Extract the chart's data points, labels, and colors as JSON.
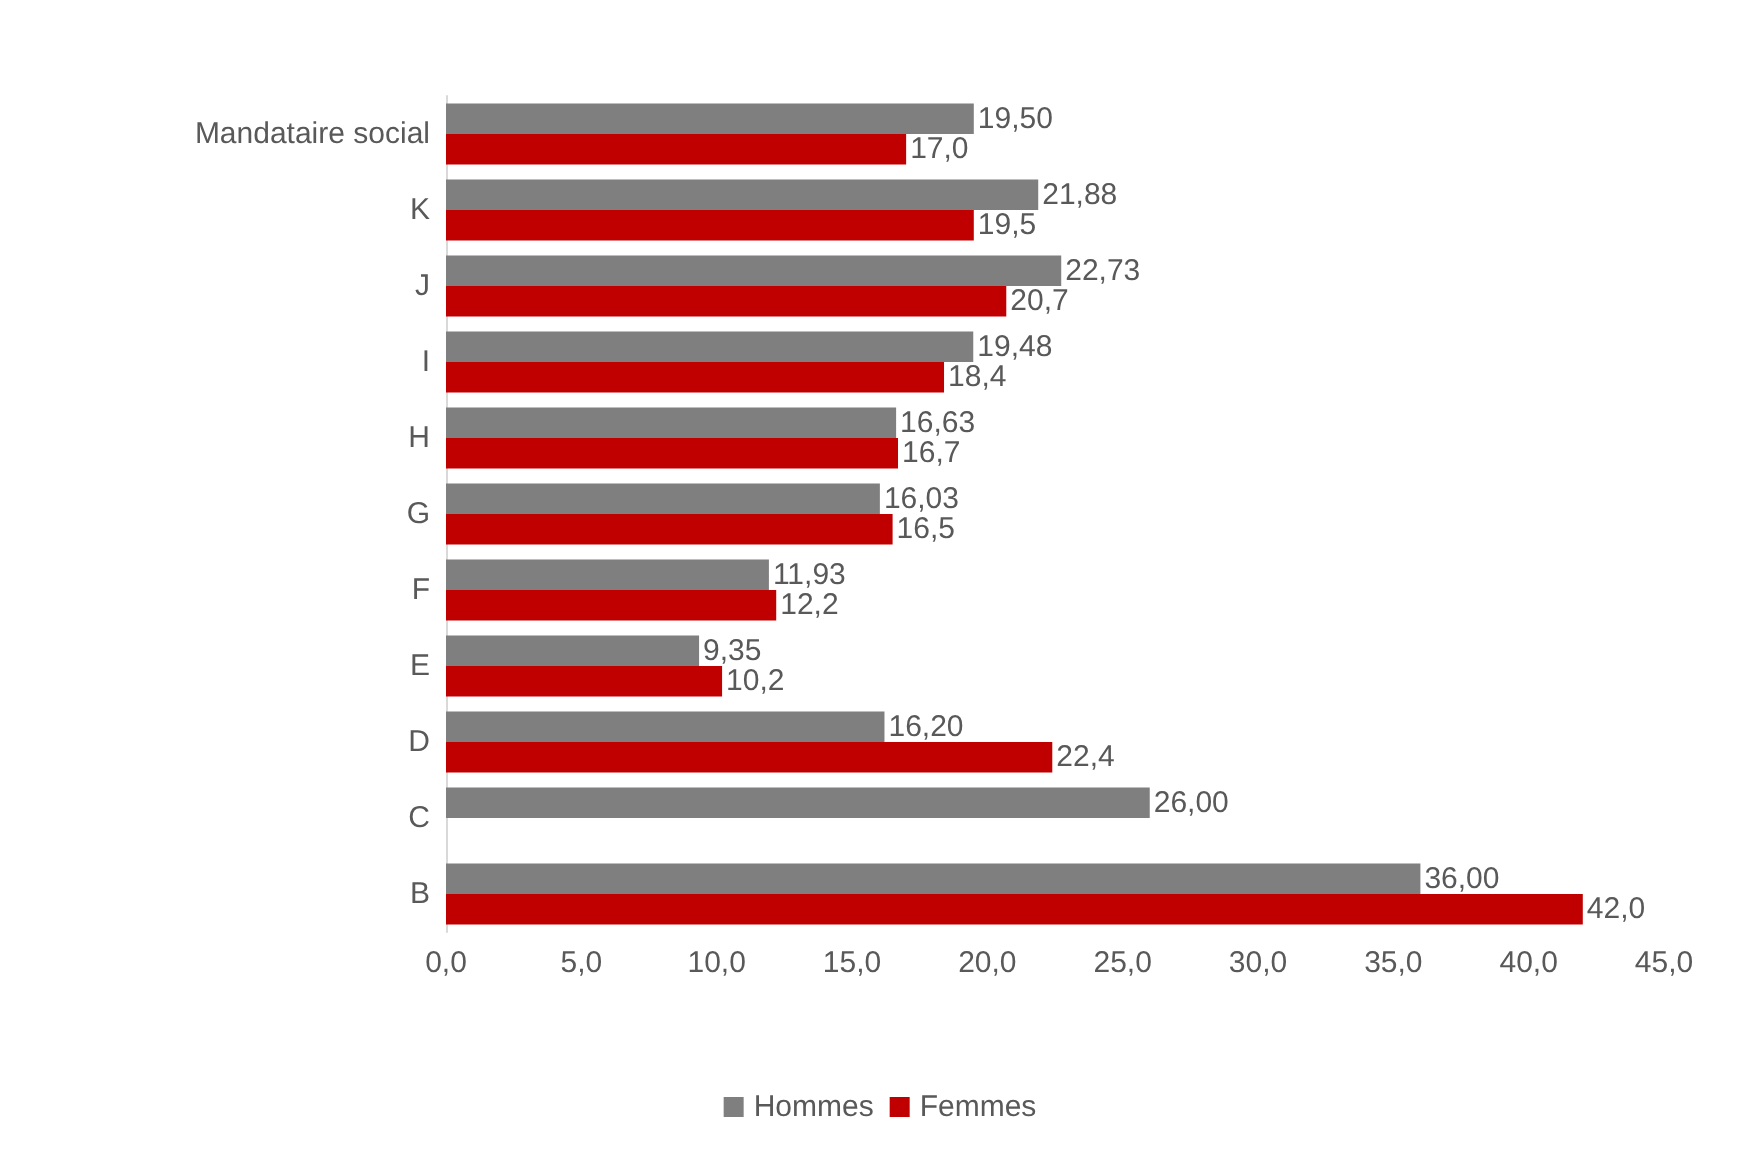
{
  "chart_data": {
    "type": "bar",
    "orientation": "horizontal",
    "categories": [
      "Mandataire social",
      "K",
      "J",
      "I",
      "H",
      "G",
      "F",
      "E",
      "D",
      "C",
      "B"
    ],
    "series": [
      {
        "name": "Hommes",
        "color": "#7f7f7f",
        "values": [
          19.5,
          21.88,
          22.73,
          19.48,
          16.63,
          16.03,
          11.93,
          9.35,
          16.2,
          26.0,
          36.0
        ],
        "value_labels": [
          "19,50",
          "21,88",
          "22,73",
          "19,48",
          "16,63",
          "16,03",
          "11,93",
          "9,35",
          "16,20",
          "26,00",
          "36,00"
        ]
      },
      {
        "name": "Femmes",
        "color": "#c00000",
        "values": [
          17.0,
          19.5,
          20.7,
          18.4,
          16.7,
          16.5,
          12.2,
          10.2,
          22.4,
          null,
          42.0
        ],
        "value_labels": [
          "17,0",
          "19,5",
          "20,7",
          "18,4",
          "16,7",
          "16,5",
          "12,2",
          "10,2",
          "22,4",
          null,
          "42,0"
        ]
      }
    ],
    "xlim": [
      0,
      45
    ],
    "xticks": [
      {
        "value": 0,
        "label": "0,0"
      },
      {
        "value": 5,
        "label": "5,0"
      },
      {
        "value": 10,
        "label": "10,0"
      },
      {
        "value": 15,
        "label": "15,0"
      },
      {
        "value": 20,
        "label": "20,0"
      },
      {
        "value": 25,
        "label": "25,0"
      },
      {
        "value": 30,
        "label": "30,0"
      },
      {
        "value": 35,
        "label": "35,0"
      },
      {
        "value": 40,
        "label": "40,0"
      },
      {
        "value": 45,
        "label": "45,0"
      }
    ],
    "legend": "bottom",
    "grid": false
  }
}
